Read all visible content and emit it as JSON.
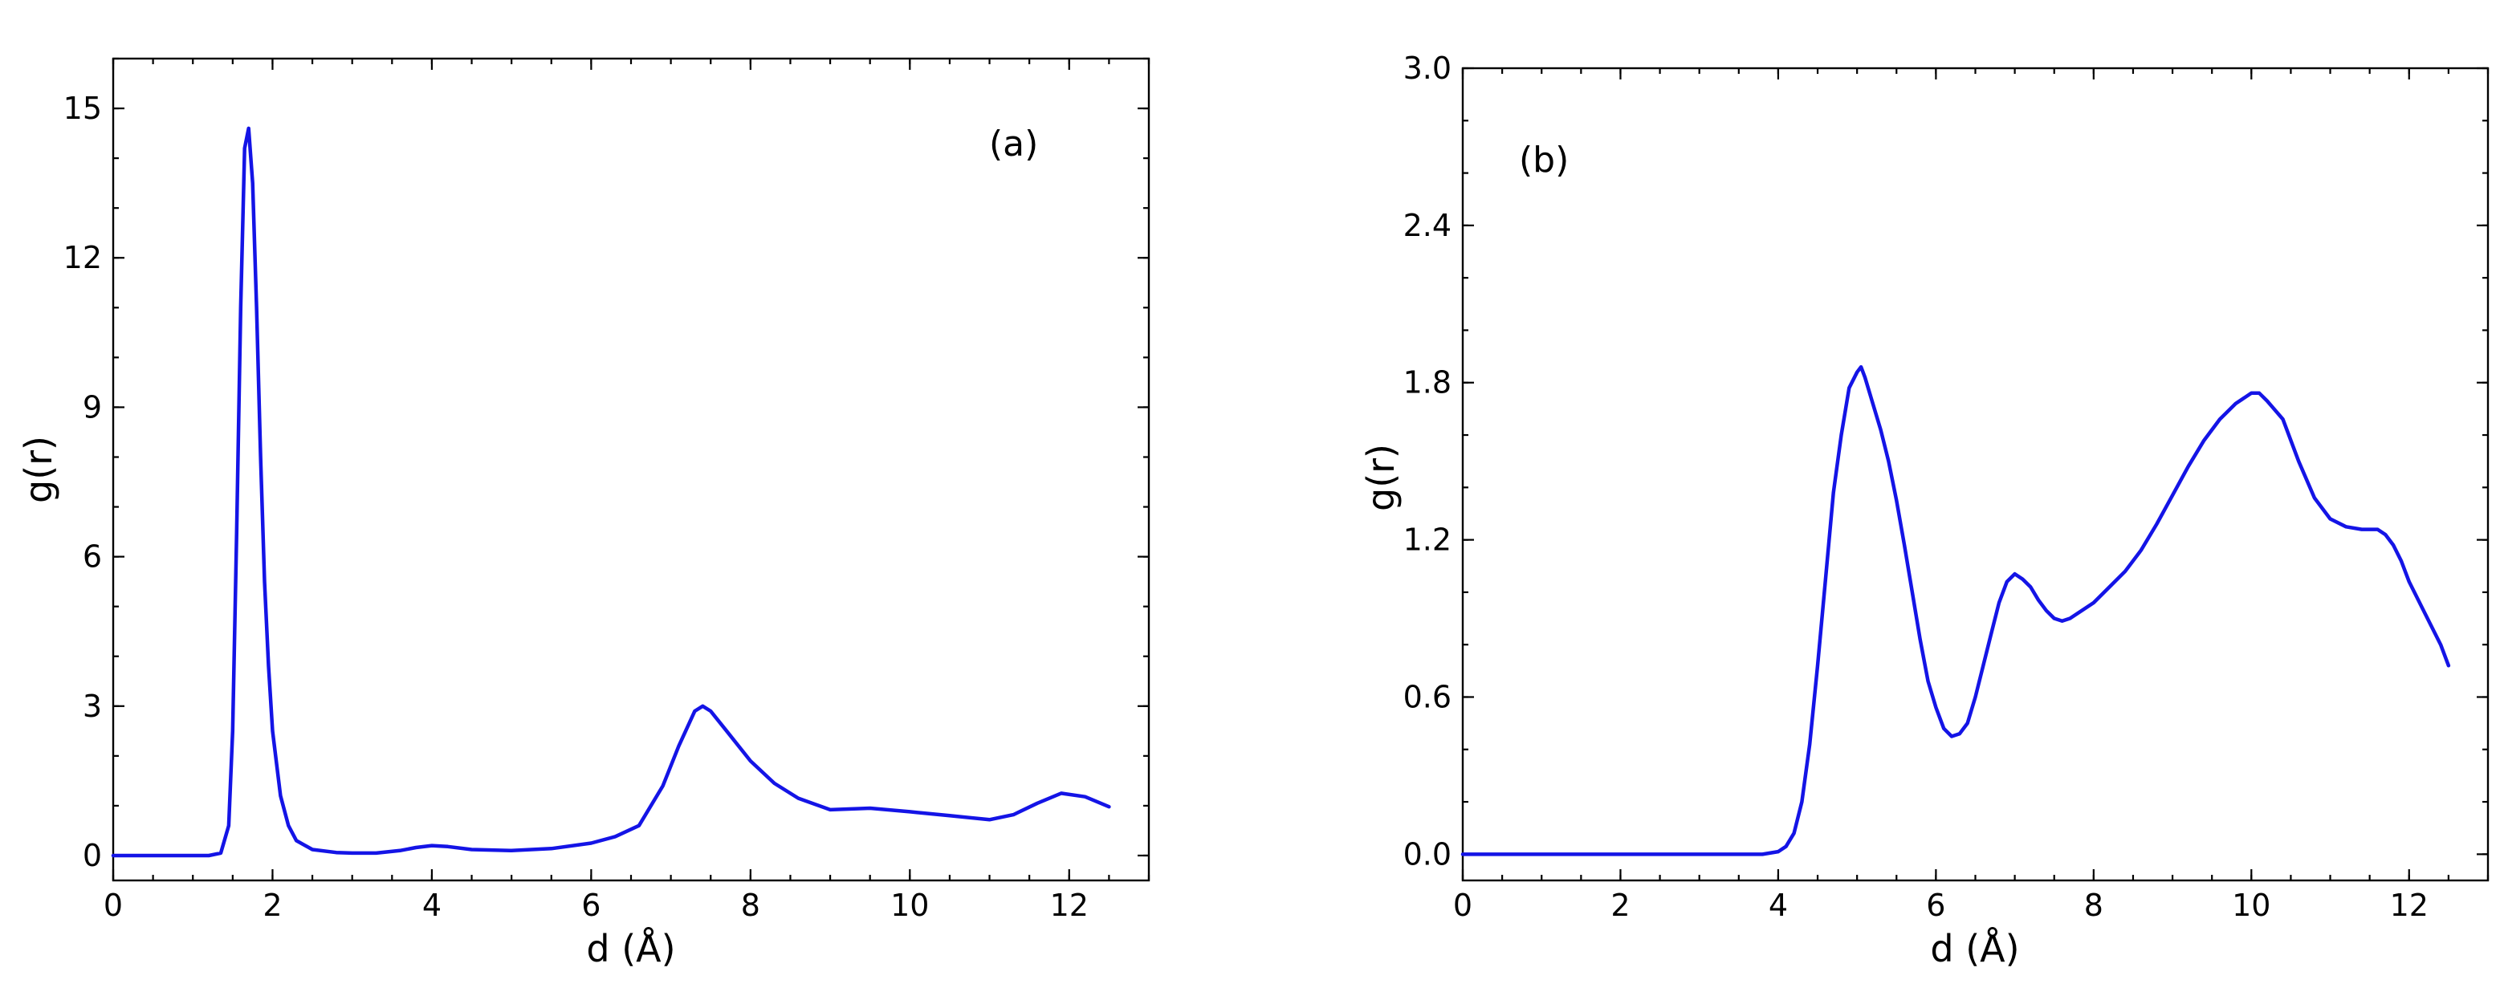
{
  "figure": {
    "background": "#ffffff",
    "line_color": "#1414e6"
  },
  "chart_data": [
    {
      "type": "line",
      "panel_label": "(a)",
      "xlabel": "d (Å)",
      "ylabel": "g(r)",
      "xlim": [
        0,
        13
      ],
      "ylim": [
        -0.5,
        16
      ],
      "xticks": [
        0,
        2,
        4,
        6,
        8,
        10,
        12
      ],
      "xtick_labels": [
        "0",
        "2",
        "4",
        "6",
        "8",
        "10",
        "12"
      ],
      "yticks": [
        0,
        3,
        6,
        9,
        12,
        15
      ],
      "ytick_labels": [
        "0",
        "3",
        "6",
        "9",
        "12",
        "15"
      ],
      "x_minor_step": 0.5,
      "y_minor_step": 1,
      "series": [
        {
          "name": "g(r)",
          "x": [
            0,
            1.2,
            1.35,
            1.45,
            1.5,
            1.55,
            1.6,
            1.65,
            1.7,
            1.75,
            1.8,
            1.85,
            1.9,
            1.95,
            2.0,
            2.1,
            2.2,
            2.3,
            2.5,
            2.8,
            3.0,
            3.3,
            3.6,
            3.8,
            4.0,
            4.2,
            4.5,
            5.0,
            5.5,
            6.0,
            6.3,
            6.6,
            6.9,
            7.1,
            7.3,
            7.4,
            7.5,
            7.7,
            8.0,
            8.3,
            8.6,
            9.0,
            9.5,
            10.0,
            10.5,
            11.0,
            11.3,
            11.6,
            11.9,
            12.2,
            12.5
          ],
          "y": [
            0,
            0,
            0.05,
            0.6,
            2.5,
            6.5,
            11.0,
            14.2,
            14.6,
            13.5,
            11.0,
            8.0,
            5.5,
            3.8,
            2.5,
            1.2,
            0.6,
            0.3,
            0.12,
            0.06,
            0.05,
            0.05,
            0.1,
            0.16,
            0.2,
            0.18,
            0.12,
            0.1,
            0.14,
            0.25,
            0.38,
            0.6,
            1.4,
            2.2,
            2.9,
            3.0,
            2.9,
            2.5,
            1.9,
            1.45,
            1.15,
            0.92,
            0.95,
            0.88,
            0.8,
            0.72,
            0.82,
            1.05,
            1.25,
            1.18,
            0.98
          ]
        }
      ]
    },
    {
      "type": "line",
      "panel_label": "(b)",
      "xlabel": "d (Å)",
      "ylabel": "g(r)",
      "xlim": [
        0,
        13
      ],
      "ylim": [
        -0.1,
        3.0
      ],
      "xticks": [
        0,
        2,
        4,
        6,
        8,
        10,
        12
      ],
      "xtick_labels": [
        "0",
        "2",
        "4",
        "6",
        "8",
        "10",
        "12"
      ],
      "yticks": [
        0,
        0.6,
        1.2,
        1.8,
        2.4,
        3.0
      ],
      "ytick_labels": [
        "0.0",
        "0.6",
        "1.2",
        "1.8",
        "2.4",
        "3.0"
      ],
      "x_minor_step": 0.5,
      "y_minor_step": 0.2,
      "series": [
        {
          "name": "g(r)",
          "x": [
            0,
            3.8,
            4.0,
            4.1,
            4.2,
            4.3,
            4.4,
            4.5,
            4.6,
            4.7,
            4.8,
            4.9,
            5.0,
            5.05,
            5.1,
            5.2,
            5.3,
            5.4,
            5.5,
            5.6,
            5.7,
            5.8,
            5.9,
            6.0,
            6.1,
            6.2,
            6.3,
            6.4,
            6.5,
            6.6,
            6.7,
            6.8,
            6.9,
            7.0,
            7.1,
            7.2,
            7.3,
            7.4,
            7.5,
            7.6,
            7.7,
            7.8,
            8.0,
            8.2,
            8.4,
            8.6,
            8.8,
            9.0,
            9.2,
            9.4,
            9.6,
            9.8,
            10.0,
            10.1,
            10.2,
            10.4,
            10.6,
            10.8,
            11.0,
            11.2,
            11.4,
            11.6,
            11.7,
            11.8,
            11.9,
            12.0,
            12.2,
            12.4,
            12.5
          ],
          "y": [
            0,
            0,
            0.01,
            0.03,
            0.08,
            0.2,
            0.42,
            0.72,
            1.05,
            1.38,
            1.6,
            1.78,
            1.84,
            1.86,
            1.82,
            1.72,
            1.62,
            1.5,
            1.35,
            1.18,
            1.0,
            0.82,
            0.66,
            0.56,
            0.48,
            0.45,
            0.46,
            0.5,
            0.6,
            0.72,
            0.84,
            0.96,
            1.04,
            1.07,
            1.05,
            1.02,
            0.97,
            0.93,
            0.9,
            0.89,
            0.9,
            0.92,
            0.96,
            1.02,
            1.08,
            1.16,
            1.26,
            1.37,
            1.48,
            1.58,
            1.66,
            1.72,
            1.76,
            1.76,
            1.73,
            1.66,
            1.5,
            1.36,
            1.28,
            1.25,
            1.24,
            1.24,
            1.22,
            1.18,
            1.12,
            1.04,
            0.92,
            0.8,
            0.72
          ]
        }
      ]
    }
  ]
}
